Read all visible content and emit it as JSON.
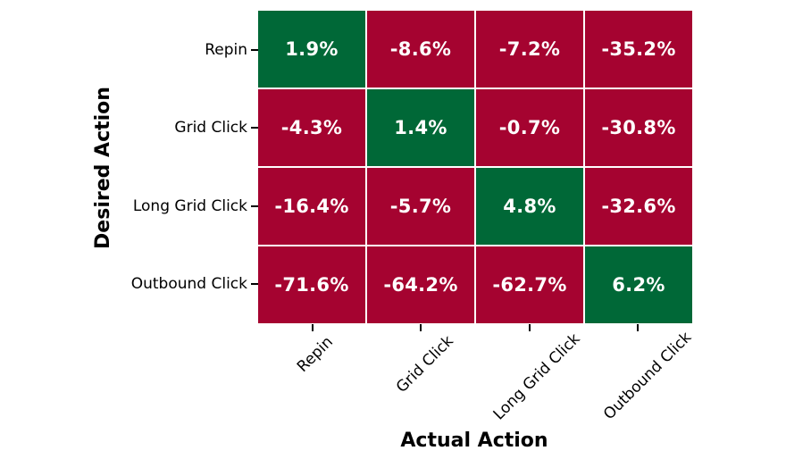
{
  "chart_data": {
    "type": "heatmap",
    "title": "",
    "xlabel": "Actual Action",
    "ylabel": "Desired Action",
    "x_categories": [
      "Repin",
      "Grid Click",
      "Long Grid Click",
      "Outbound Click"
    ],
    "y_categories": [
      "Repin",
      "Grid Click",
      "Long Grid Click",
      "Outbound Click"
    ],
    "values_percent": [
      [
        1.9,
        -8.6,
        -7.2,
        -35.2
      ],
      [
        -4.3,
        1.4,
        -0.7,
        -30.8
      ],
      [
        -16.4,
        -5.7,
        4.8,
        -32.6
      ],
      [
        -71.6,
        -64.2,
        -62.7,
        6.2
      ]
    ],
    "cell_labels": [
      [
        "1.9%",
        "-8.6%",
        "-7.2%",
        "-35.2%"
      ],
      [
        "-4.3%",
        "1.4%",
        "-0.7%",
        "-30.8%"
      ],
      [
        "-16.4%",
        "-5.7%",
        "4.8%",
        "-32.6%"
      ],
      [
        "-71.6%",
        "-64.2%",
        "-62.7%",
        "6.2%"
      ]
    ],
    "colors": {
      "positive_cell": "#006837",
      "negative_cell": "#A50330",
      "cell_text": "#ffffff",
      "tick_mark": "#000000",
      "grid_line": "#ffffff",
      "background": "#ffffff"
    },
    "legend_position": "none",
    "x_tick_rotation_deg": 45,
    "grid": "white 2px cell separators"
  }
}
